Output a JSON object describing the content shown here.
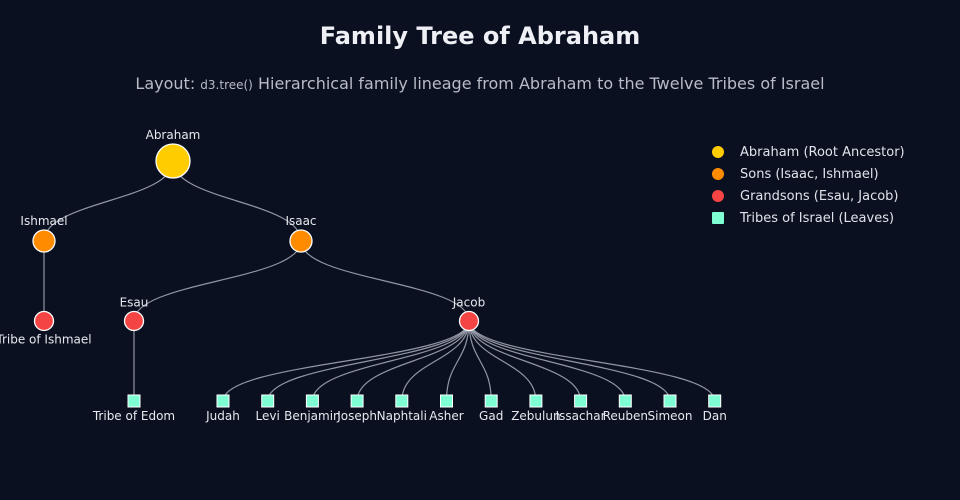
{
  "title": "Family Tree of Abraham",
  "subtitle": {
    "prefix": "Layout: ",
    "code": "d3.tree()",
    "text": " Hierarchical family lineage from Abraham to the Twelve Tribes of Israel"
  },
  "colors": {
    "background": "#0b1020",
    "root": "#ffcc00",
    "son": "#ff8c00",
    "grandson": "#f44444",
    "tribe": "#7fffd4",
    "link": "#a9aebb",
    "label": "#e6e8ee"
  },
  "legend": [
    {
      "label": "Abraham (Root Ancestor)",
      "shape": "circle",
      "color": "#ffcc00"
    },
    {
      "label": "Sons (Isaac, Ishmael)",
      "shape": "circle",
      "color": "#ff8c00"
    },
    {
      "label": "Grandsons (Esau, Jacob)",
      "shape": "circle",
      "color": "#f44444"
    },
    {
      "label": "Tribes of Israel (Leaves)",
      "shape": "square",
      "color": "#7fffd4"
    }
  ],
  "tree": {
    "name": "Abraham",
    "level": "root",
    "children": [
      {
        "name": "Ishmael",
        "level": "son",
        "children": [
          {
            "name": "Tribe of Ishmael",
            "level": "grandson"
          }
        ]
      },
      {
        "name": "Isaac",
        "level": "son",
        "children": [
          {
            "name": "Esau",
            "level": "grandson",
            "children": [
              {
                "name": "Tribe of Edom",
                "level": "tribe"
              }
            ]
          },
          {
            "name": "Jacob",
            "level": "grandson",
            "children": [
              {
                "name": "Judah",
                "level": "tribe"
              },
              {
                "name": "Levi",
                "level": "tribe"
              },
              {
                "name": "Benjamin",
                "level": "tribe"
              },
              {
                "name": "Joseph",
                "level": "tribe"
              },
              {
                "name": "Naphtali",
                "level": "tribe"
              },
              {
                "name": "Asher",
                "level": "tribe"
              },
              {
                "name": "Gad",
                "level": "tribe"
              },
              {
                "name": "Zebulun",
                "level": "tribe"
              },
              {
                "name": "Issachar",
                "level": "tribe"
              },
              {
                "name": "Reuben",
                "level": "tribe"
              },
              {
                "name": "Simeon",
                "level": "tribe"
              },
              {
                "name": "Dan",
                "level": "tribe"
              }
            ]
          }
        ]
      }
    ]
  }
}
